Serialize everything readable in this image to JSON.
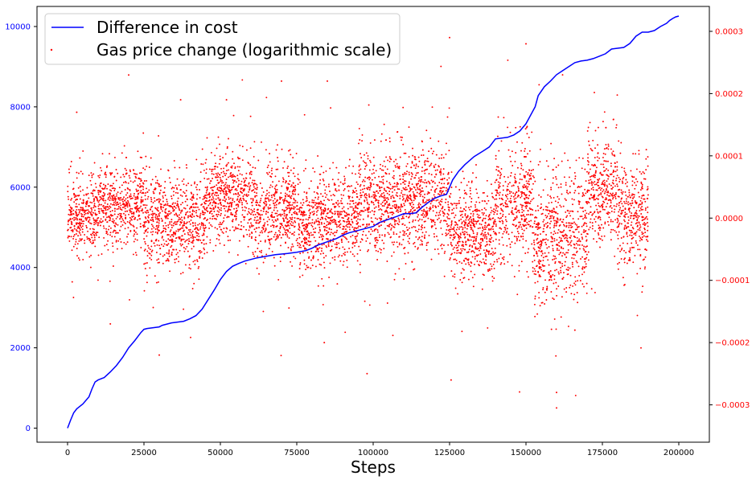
{
  "chart_data": {
    "type": "line",
    "xlabel": "Steps",
    "ylabel": "",
    "y2label": "",
    "xlim": [
      -10000,
      210000
    ],
    "ylim": [
      -350,
      10500
    ],
    "y2lim": [
      -0.00036,
      0.00034
    ],
    "x_ticks": [
      0,
      25000,
      50000,
      75000,
      100000,
      125000,
      150000,
      175000,
      200000
    ],
    "x_tick_labels": [
      "0",
      "25000",
      "50000",
      "75000",
      "100000",
      "125000",
      "150000",
      "175000",
      "200000"
    ],
    "y_ticks": [
      0,
      2000,
      4000,
      6000,
      8000,
      10000
    ],
    "y_tick_labels": [
      "0",
      "2000",
      "4000",
      "6000",
      "8000",
      "10000"
    ],
    "y2_ticks": [
      -0.0003,
      -0.0002,
      -0.0001,
      0.0,
      0.0001,
      0.0002,
      0.0003
    ],
    "y2_tick_labels": [
      "−0.0003",
      "−0.0002",
      "−0.0001",
      "0.0000",
      "0.0001",
      "0.0002",
      "0.0003"
    ],
    "legend": {
      "position": "upper-left",
      "entries": [
        "Difference in cost",
        "Gas price change (logarithmic scale)"
      ]
    },
    "grid": false,
    "series": [
      {
        "name": "Difference in cost",
        "type": "line",
        "axis": "left",
        "color": "#0000ff",
        "x": [
          0,
          1000,
          2000,
          3000,
          5000,
          7000,
          8000,
          9000,
          10000,
          12000,
          14000,
          16000,
          18000,
          20000,
          22000,
          24000,
          25000,
          26000,
          30000,
          31000,
          32000,
          33000,
          34000,
          38000,
          40000,
          42000,
          44000,
          46000,
          48000,
          50000,
          52000,
          54000,
          56000,
          58000,
          60000,
          62000,
          65000,
          68000,
          72000,
          75000,
          78000,
          80000,
          82000,
          85000,
          88000,
          90000,
          92000,
          95000,
          98000,
          100000,
          102000,
          105000,
          108000,
          110000,
          112000,
          114000,
          116000,
          118000,
          120000,
          122000,
          124000,
          125000,
          126000,
          128000,
          130000,
          133000,
          136000,
          138000,
          140000,
          144000,
          146000,
          148000,
          150000,
          151000,
          153000,
          154000,
          156000,
          158000,
          160000,
          162000,
          164000,
          166000,
          168000,
          170000,
          172000,
          174000,
          176000,
          178000,
          180000,
          182000,
          184000,
          186000,
          188000,
          190000,
          192000,
          194000,
          196000,
          197000,
          198000,
          199000,
          200000
        ],
        "y": [
          0,
          200,
          380,
          480,
          600,
          780,
          980,
          1150,
          1200,
          1260,
          1400,
          1560,
          1760,
          2000,
          2180,
          2380,
          2460,
          2480,
          2520,
          2560,
          2580,
          2600,
          2620,
          2660,
          2720,
          2800,
          2960,
          3200,
          3440,
          3700,
          3900,
          4030,
          4100,
          4160,
          4200,
          4240,
          4280,
          4320,
          4350,
          4380,
          4420,
          4480,
          4560,
          4640,
          4720,
          4800,
          4860,
          4920,
          4980,
          5020,
          5120,
          5200,
          5280,
          5340,
          5340,
          5360,
          5500,
          5620,
          5720,
          5780,
          5820,
          6000,
          6180,
          6400,
          6560,
          6760,
          6900,
          7000,
          7200,
          7240,
          7300,
          7400,
          7580,
          7720,
          8000,
          8280,
          8500,
          8640,
          8800,
          8900,
          9000,
          9100,
          9140,
          9160,
          9200,
          9260,
          9320,
          9440,
          9460,
          9480,
          9580,
          9760,
          9860,
          9860,
          9900,
          10000,
          10080,
          10150,
          10200,
          10240,
          10260
        ]
      },
      {
        "name": "Gas price change (logarithmic scale)",
        "type": "scatter",
        "axis": "right",
        "color": "#ff0000",
        "x_range": [
          0,
          190000
        ],
        "regimes": [
          {
            "x": [
              0,
              10000
            ],
            "center": 3e-06,
            "spread": 2.8e-05
          },
          {
            "x": [
              10000,
              25000
            ],
            "center": 2.2e-05,
            "spread": 3e-05
          },
          {
            "x": [
              25000,
              45000
            ],
            "center": -5e-06,
            "spread": 3.5e-05
          },
          {
            "x": [
              45000,
              60000
            ],
            "center": 3.5e-05,
            "spread": 3.5e-05
          },
          {
            "x": [
              60000,
              75000
            ],
            "center": 1.2e-05,
            "spread": 3.5e-05
          },
          {
            "x": [
              75000,
              95000
            ],
            "center": -5e-06,
            "spread": 3.5e-05
          },
          {
            "x": [
              95000,
              110000
            ],
            "center": 2.5e-05,
            "spread": 4e-05
          },
          {
            "x": [
              110000,
              125000
            ],
            "center": 3e-05,
            "spread": 4e-05
          },
          {
            "x": [
              125000,
              140000
            ],
            "center": -2e-05,
            "spread": 3.5e-05
          },
          {
            "x": [
              140000,
              152000
            ],
            "center": 2e-05,
            "spread": 4.5e-05
          },
          {
            "x": [
              152000,
              170000
            ],
            "center": -3e-05,
            "spread": 5e-05
          },
          {
            "x": [
              170000,
              180000
            ],
            "center": 4.5e-05,
            "spread": 4e-05
          },
          {
            "x": [
              180000,
              190000
            ],
            "center": 5e-06,
            "spread": 4e-05
          }
        ],
        "outliers": [
          {
            "x": 125000,
            "y": 0.00029
          },
          {
            "x": 150000,
            "y": 0.00028
          },
          {
            "x": 20000,
            "y": 0.00023
          },
          {
            "x": 160000,
            "y": -0.000305
          },
          {
            "x": 160000,
            "y": -0.00028
          },
          {
            "x": 125500,
            "y": -0.00026
          },
          {
            "x": 98000,
            "y": -0.00025
          },
          {
            "x": 85000,
            "y": 0.00022
          },
          {
            "x": 70000,
            "y": 0.00022
          },
          {
            "x": 3000,
            "y": 0.00017
          },
          {
            "x": 37000,
            "y": 0.00019
          },
          {
            "x": 52000,
            "y": 0.00019
          },
          {
            "x": 14000,
            "y": -0.00017
          },
          {
            "x": 30000,
            "y": -0.00022
          },
          {
            "x": 166000,
            "y": -0.00018
          },
          {
            "x": 84000,
            "y": -0.0002
          }
        ]
      }
    ]
  }
}
